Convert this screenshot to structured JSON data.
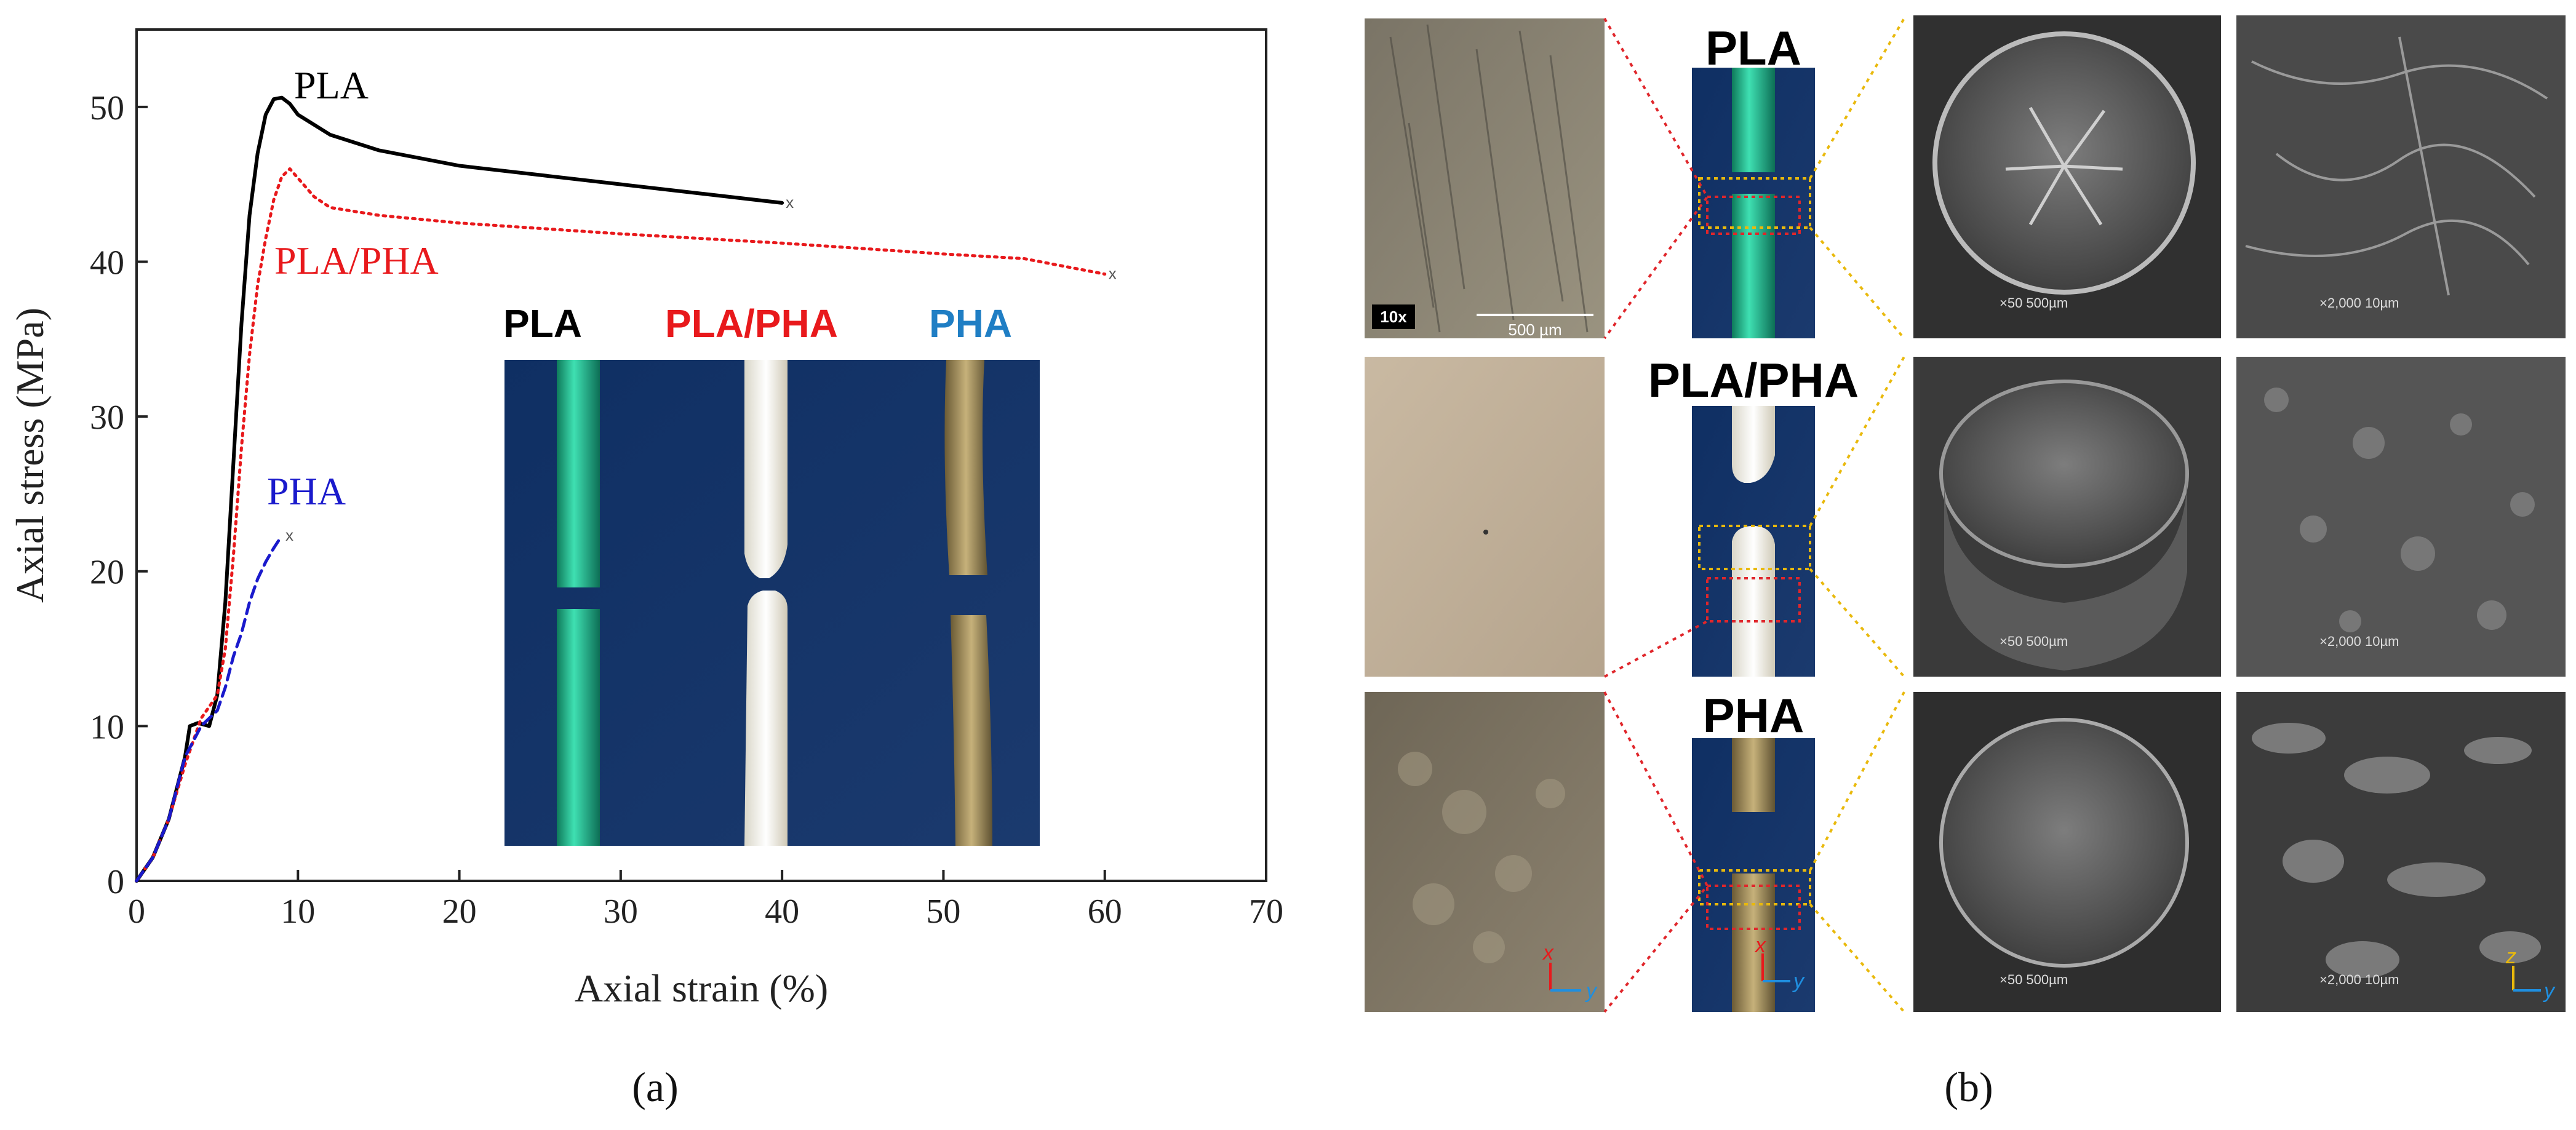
{
  "colors": {
    "PLA": "#000000",
    "PLA/PHA": "#e8191c",
    "PHA": "#1a1acc",
    "PHA_inset": "#1f7ec4",
    "dotted_red": "#e0262b",
    "dotted_yellow": "#e9b90c"
  },
  "chart_data": {
    "type": "line",
    "xlabel": "Axial strain (%)",
    "ylabel": "Axial stress (MPa)",
    "xlim": [
      0,
      70
    ],
    "ylim": [
      0,
      55
    ],
    "xticks": [
      0,
      10,
      20,
      30,
      40,
      50,
      60,
      70
    ],
    "yticks": [
      0,
      10,
      20,
      30,
      40,
      50
    ],
    "series": [
      {
        "name": "PLA",
        "style": "solid",
        "color": "#000000",
        "x": [
          0,
          1,
          2,
          3,
          3.3,
          3.8,
          4.5,
          5,
          5.5,
          6,
          6.5,
          7,
          7.5,
          8,
          8.5,
          9,
          9.5,
          10,
          12,
          15,
          20,
          25,
          30,
          35,
          40
        ],
        "y": [
          0,
          1.5,
          4,
          8,
          10,
          10.2,
          10,
          12,
          18,
          27,
          36,
          43,
          47,
          49.5,
          50.5,
          50.6,
          50.2,
          49.5,
          48.2,
          47.2,
          46.2,
          45.6,
          45,
          44.4,
          43.8
        ]
      },
      {
        "name": "PLA/PHA",
        "style": "dotted",
        "color": "#e8191c",
        "x": [
          0,
          1,
          2,
          3,
          4,
          5,
          5.5,
          6,
          6.5,
          7,
          7.5,
          8,
          8.5,
          9,
          9.5,
          10,
          11,
          12,
          15,
          20,
          30,
          40,
          50,
          55,
          60
        ],
        "y": [
          0,
          1.5,
          4,
          7.5,
          10.5,
          12,
          15,
          21,
          28,
          34,
          38.5,
          41.5,
          44,
          45.5,
          46,
          45.4,
          44.2,
          43.5,
          43,
          42.5,
          41.8,
          41.2,
          40.5,
          40.2,
          39.2
        ]
      },
      {
        "name": "PHA",
        "style": "dashed",
        "color": "#1a1acc",
        "x": [
          0,
          1,
          2,
          3,
          4,
          5,
          5.5,
          6,
          6.5,
          7,
          7.5,
          8,
          8.5,
          9
        ],
        "y": [
          0,
          1.5,
          4,
          8,
          10,
          11,
          12.5,
          14.5,
          16,
          18,
          19.5,
          20.6,
          21.5,
          22.3
        ]
      }
    ],
    "end_markers": [
      "x",
      "x",
      "x"
    ]
  },
  "chart_labels": {
    "pla": "PLA",
    "pla_pha": "PLA/PHA",
    "pha": "PHA"
  },
  "inset": {
    "title_pla": "PLA",
    "title_pla_pha": "PLA/PHA",
    "title_pha": "PHA"
  },
  "panel_b": {
    "rows": [
      "PLA",
      "PLA/PHA",
      "PHA"
    ],
    "magnification": "10x",
    "scale_bar_optical": "500 µm",
    "sem_low_mag": "×50  500µm",
    "sem_high_mag": "×2,000  10µm",
    "axis_x": "x",
    "axis_y": "y",
    "axis_z": "z"
  },
  "captions": {
    "a": "(a)",
    "b": "(b)"
  }
}
